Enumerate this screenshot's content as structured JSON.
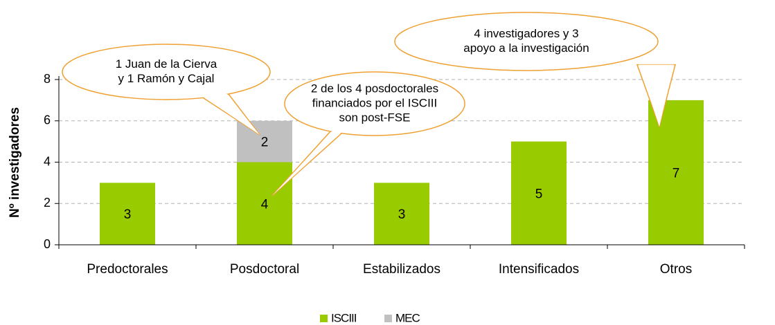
{
  "chart_data": {
    "type": "stacked_bar",
    "y_label": "Nº investigadores",
    "categories": [
      "Predoctorales",
      "Posdoctoral",
      "Estabilizados",
      "Intensificados",
      "Otros"
    ],
    "series": [
      {
        "name": "ISCIII",
        "color": "#99cc00",
        "values": [
          3,
          4,
          3,
          5,
          7
        ]
      },
      {
        "name": "MEC",
        "color": "#c0c0c0",
        "values": [
          null,
          2,
          null,
          null,
          null
        ]
      }
    ],
    "ylim": [
      0,
      8
    ],
    "yticks": [
      0,
      2,
      4,
      6,
      8
    ],
    "grid": true,
    "legend": "bottom",
    "annotations": [
      {
        "lines": [
          "1 Juan de la Cierva",
          "y 1  Ramón y Cajal"
        ]
      },
      {
        "lines": [
          "2 de los 4 posdoctorales",
          "financiados por el ISCIII",
          "son post-FSE"
        ]
      },
      {
        "lines": [
          "4 investigadores y 3",
          "apoyo a la investigación"
        ]
      }
    ]
  }
}
